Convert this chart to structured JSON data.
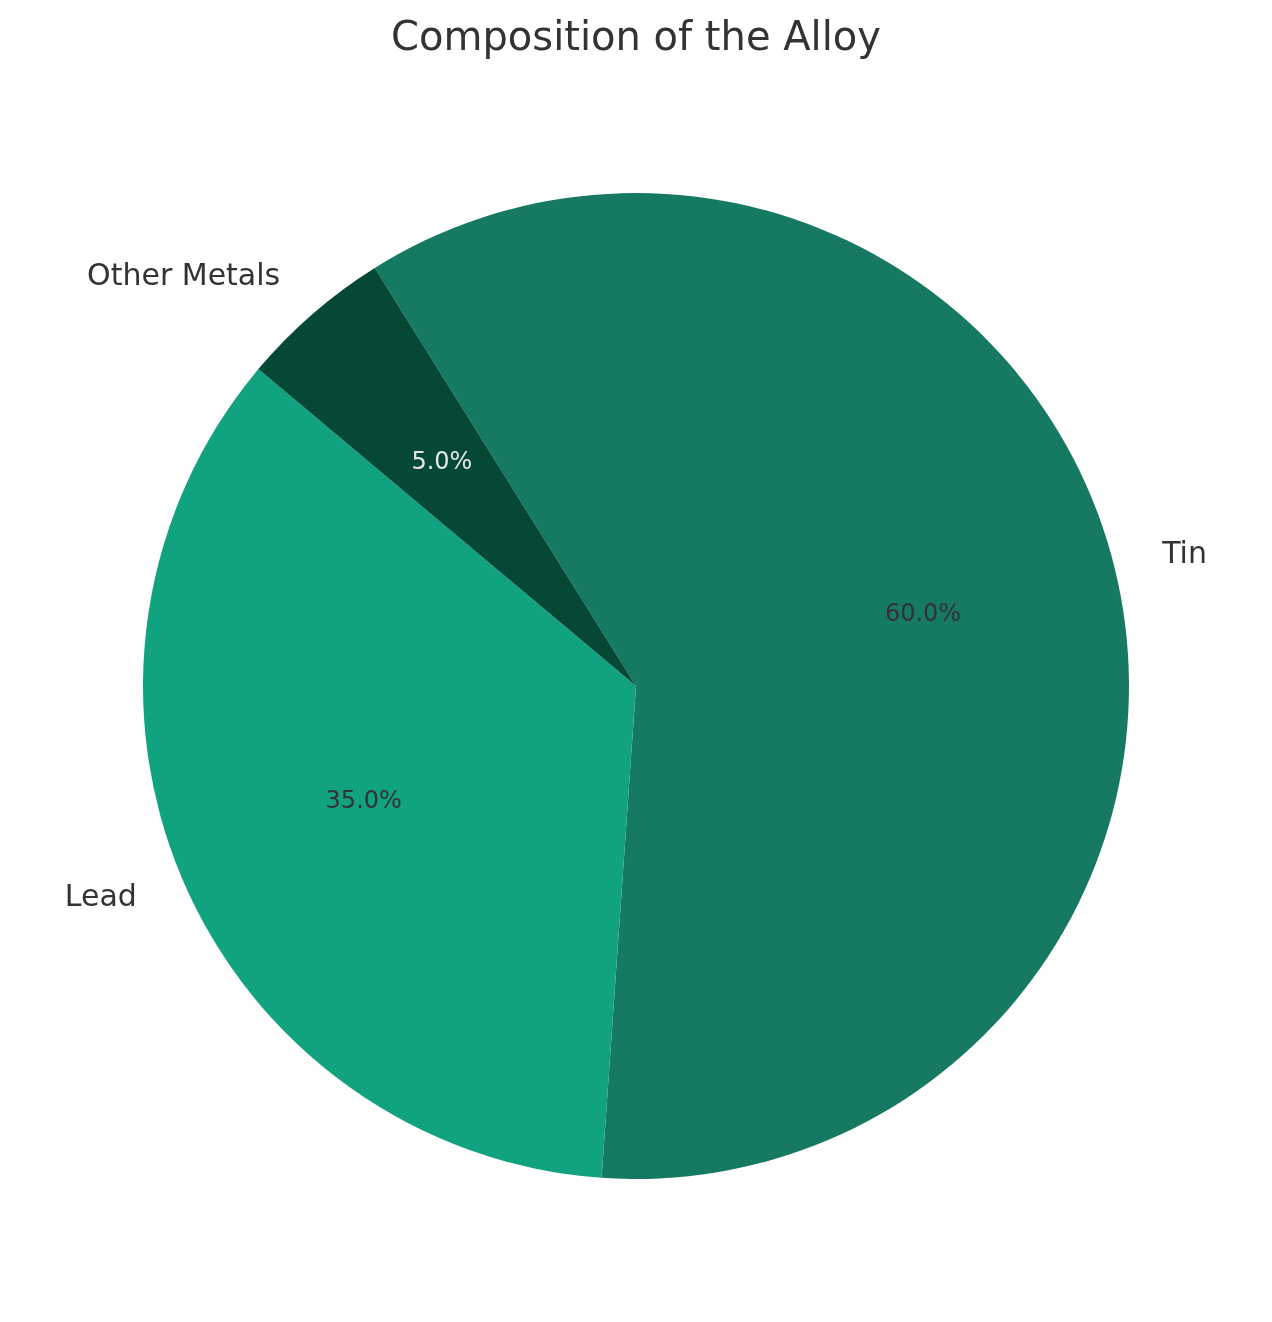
{
  "chart_data": {
    "type": "pie",
    "title": "Composition of the Alloy",
    "categories": [
      "Tin",
      "Lead",
      "Other Metals"
    ],
    "values": [
      60,
      35,
      5
    ],
    "colors": [
      "#167a63",
      "#11a27f",
      "#044835"
    ],
    "value_labels": [
      "60.0%",
      "35.0%",
      "5.0%"
    ],
    "legend": false
  }
}
